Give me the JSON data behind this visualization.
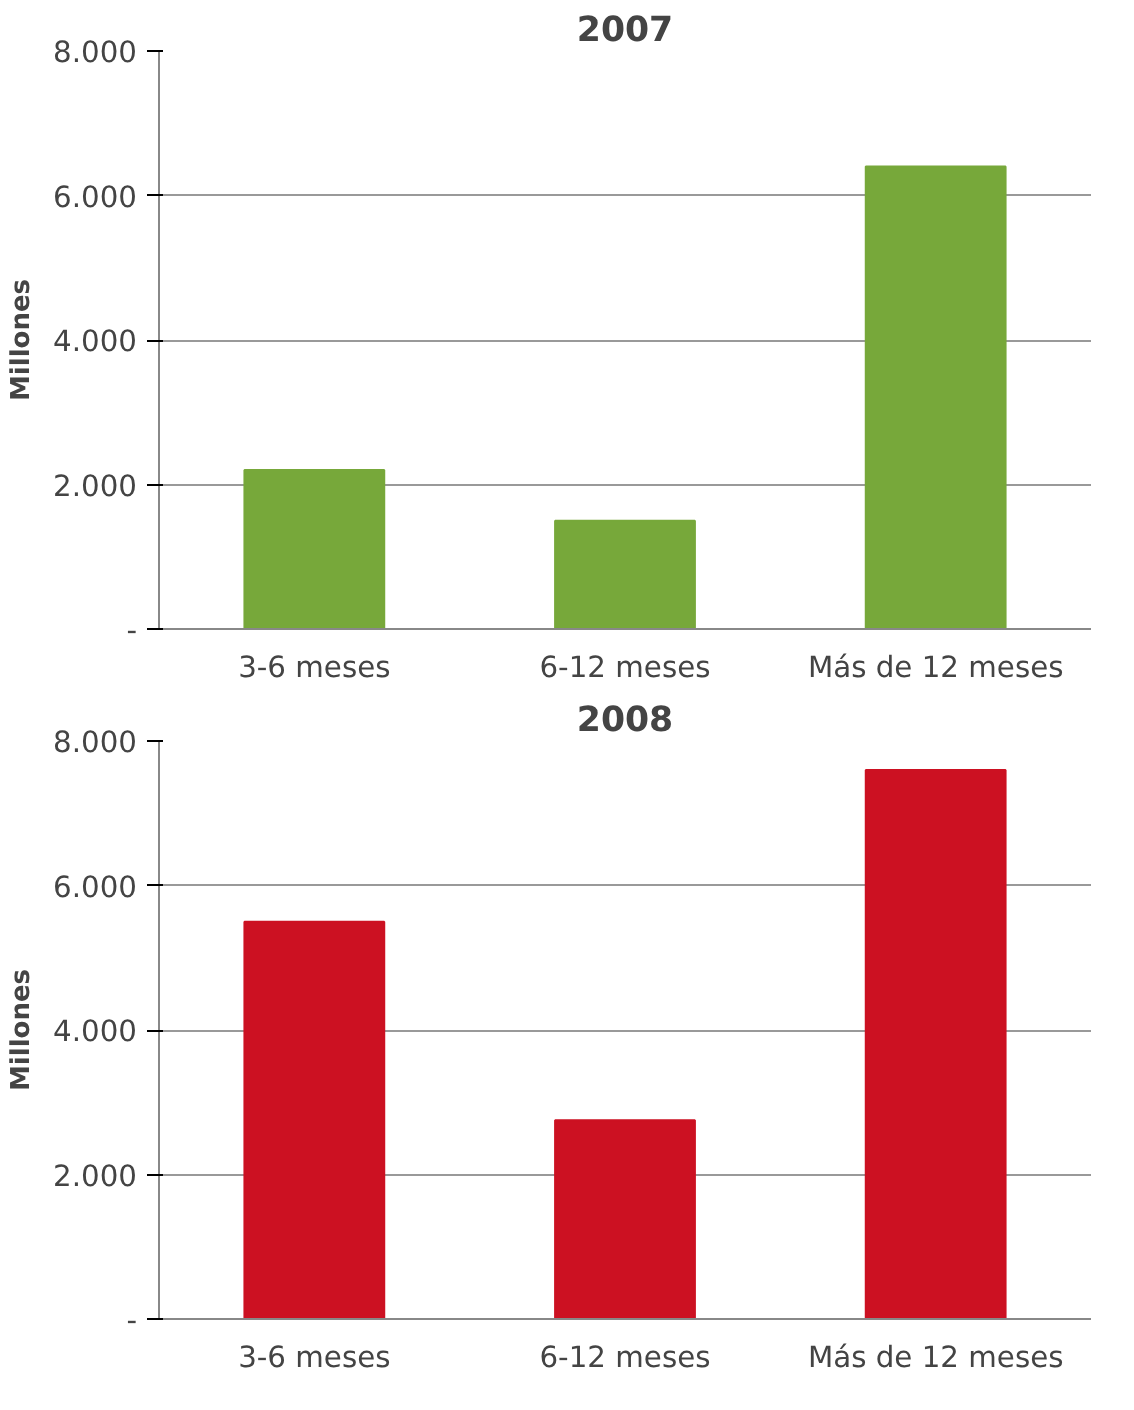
{
  "chart_data": [
    {
      "type": "bar",
      "title": "2007",
      "ylabel": "Millones",
      "categories": [
        "3-6 meses",
        "6-12 meses",
        "Más de 12 meses"
      ],
      "values": [
        2200,
        1500,
        6400
      ],
      "color": "#77a83a",
      "ylim": [
        0,
        8000
      ],
      "yticks": [
        {
          "value": 0,
          "label": "-"
        },
        {
          "value": 2000,
          "label": "2.000"
        },
        {
          "value": 4000,
          "label": "4.000"
        },
        {
          "value": 6000,
          "label": "6.000"
        },
        {
          "value": 8000,
          "label": "8.000"
        }
      ],
      "grid": "y"
    },
    {
      "type": "bar",
      "title": "2008",
      "ylabel": "Millones",
      "categories": [
        "3-6 meses",
        "6-12 meses",
        "Más de 12 meses"
      ],
      "values": [
        5500,
        2750,
        7600
      ],
      "color": "#cc1122",
      "ylim": [
        0,
        8000
      ],
      "yticks": [
        {
          "value": 0,
          "label": "-"
        },
        {
          "value": 2000,
          "label": "2.000"
        },
        {
          "value": 4000,
          "label": "4.000"
        },
        {
          "value": 6000,
          "label": "6.000"
        },
        {
          "value": 8000,
          "label": "8.000"
        }
      ],
      "grid": "y"
    }
  ]
}
